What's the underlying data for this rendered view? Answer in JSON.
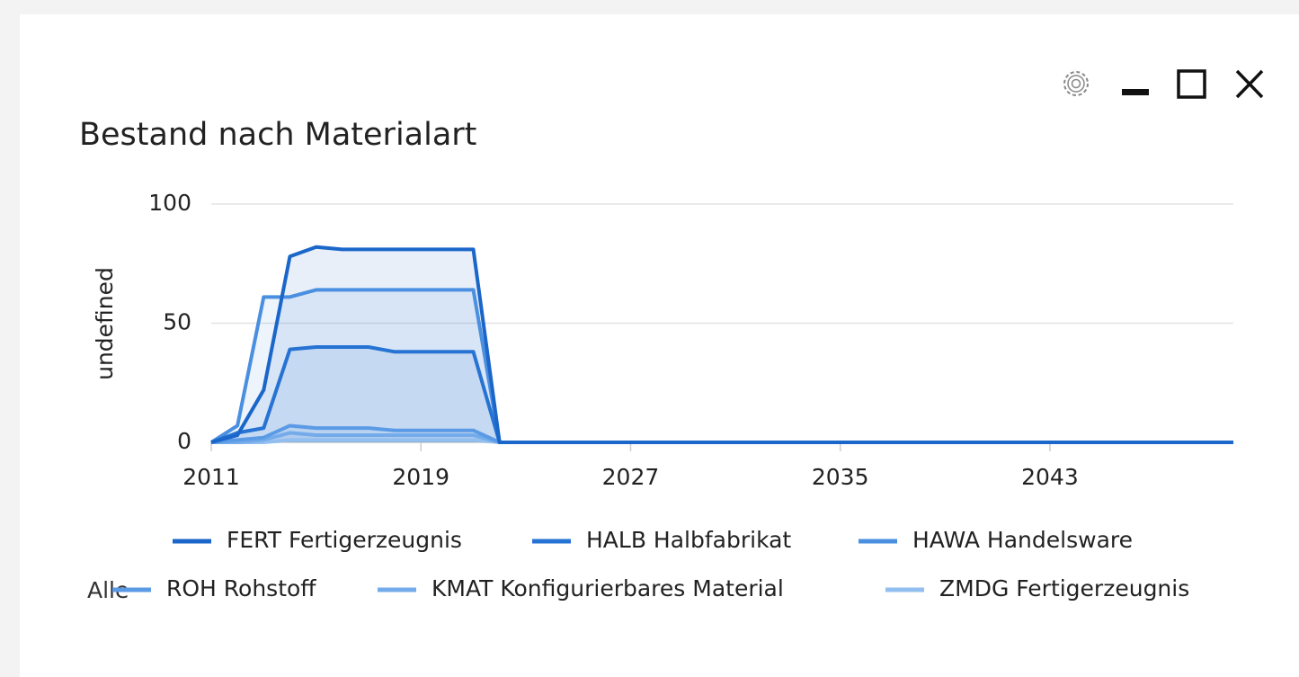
{
  "chart_data": {
    "type": "area",
    "title": "Bestand nach Materialart",
    "y_label": "undefined",
    "x": [
      2011,
      2012,
      2013,
      2014,
      2015,
      2016,
      2017,
      2018,
      2019,
      2020,
      2021,
      2022,
      2023,
      2024,
      2025,
      2026,
      2027,
      2028,
      2029,
      2030,
      2031,
      2032,
      2033,
      2034,
      2035,
      2036,
      2037,
      2038,
      2039,
      2040,
      2041,
      2042,
      2043,
      2044,
      2045,
      2046,
      2047,
      2048,
      2049,
      2050
    ],
    "xlim": [
      2011,
      2050
    ],
    "xticks": [
      2011,
      2019,
      2027,
      2035,
      2043
    ],
    "ylim": [
      0,
      100
    ],
    "yticks": [
      0,
      50,
      100
    ],
    "grid": true,
    "series": [
      {
        "name": "FERT Fertigerzeugnis",
        "color": "#1a66c9",
        "values": [
          0,
          3,
          22,
          78,
          82,
          81,
          81,
          81,
          81,
          81,
          81,
          0,
          0,
          0,
          0,
          0,
          0,
          0,
          0,
          0,
          0,
          0,
          0,
          0,
          0,
          0,
          0,
          0,
          0,
          0,
          0,
          0,
          0,
          0,
          0,
          0,
          0,
          0,
          0,
          0
        ]
      },
      {
        "name": "HALB Halbfabrikat",
        "color": "#2673d3",
        "values": [
          0,
          4,
          6,
          39,
          40,
          40,
          40,
          38,
          38,
          38,
          38,
          0,
          0,
          0,
          0,
          0,
          0,
          0,
          0,
          0,
          0,
          0,
          0,
          0,
          0,
          0,
          0,
          0,
          0,
          0,
          0,
          0,
          0,
          0,
          0,
          0,
          0,
          0,
          0,
          0
        ]
      },
      {
        "name": "HAWA Handelsware",
        "color": "#4a8fe0",
        "values": [
          0,
          7,
          61,
          61,
          64,
          64,
          64,
          64,
          64,
          64,
          64,
          0,
          0,
          0,
          0,
          0,
          0,
          0,
          0,
          0,
          0,
          0,
          0,
          0,
          0,
          0,
          0,
          0,
          0,
          0,
          0,
          0,
          0,
          0,
          0,
          0,
          0,
          0,
          0,
          0
        ]
      },
      {
        "name": "ROH Rohstoff",
        "color": "#5b9be5",
        "values": [
          0,
          1,
          2,
          7,
          6,
          6,
          6,
          5,
          5,
          5,
          5,
          0,
          0,
          0,
          0,
          0,
          0,
          0,
          0,
          0,
          0,
          0,
          0,
          0,
          0,
          0,
          0,
          0,
          0,
          0,
          0,
          0,
          0,
          0,
          0,
          0,
          0,
          0,
          0,
          0
        ]
      },
      {
        "name": "KMAT Konfigurierbares Material",
        "color": "#74abea",
        "values": [
          0,
          0,
          1,
          4,
          3,
          3,
          3,
          3,
          3,
          3,
          3,
          0,
          0,
          0,
          0,
          0,
          0,
          0,
          0,
          0,
          0,
          0,
          0,
          0,
          0,
          0,
          0,
          0,
          0,
          0,
          0,
          0,
          0,
          0,
          0,
          0,
          0,
          0,
          0,
          0
        ]
      },
      {
        "name": "ZMDG Fertigerzeugnis",
        "color": "#93bff0",
        "values": [
          0,
          0,
          0,
          1,
          1,
          1,
          1,
          1,
          1,
          1,
          1,
          0,
          0,
          0,
          0,
          0,
          0,
          0,
          0,
          0,
          0,
          0,
          0,
          0,
          0,
          0,
          0,
          0,
          0,
          0,
          0,
          0,
          0,
          0,
          0,
          0,
          0,
          0,
          0,
          0
        ]
      }
    ]
  },
  "filter_label": "Alle"
}
